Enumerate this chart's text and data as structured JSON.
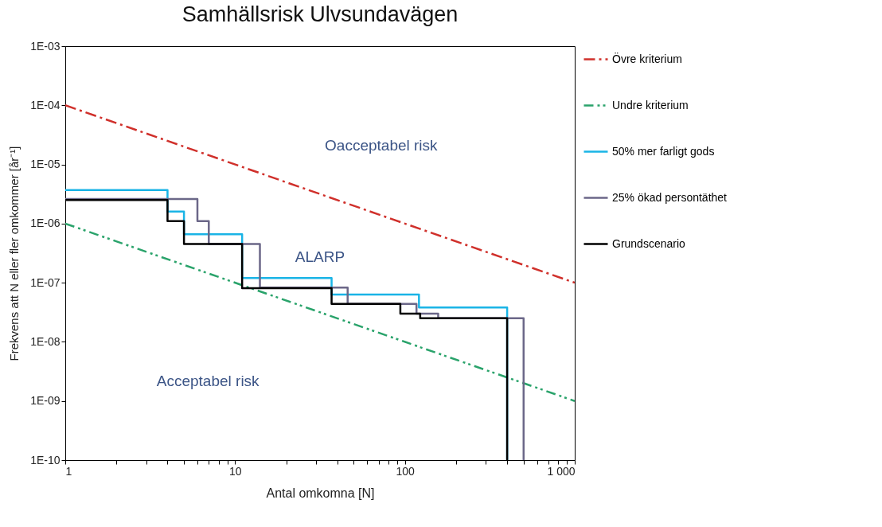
{
  "chart_data": {
    "type": "line",
    "title": "Samhällsrisk  Ulvsundavägen",
    "xlabel": "Antal omkomna [N]",
    "ylabel": "Frekvens att N eller fler omkommer [år⁻¹]",
    "log": "xy",
    "grid": false,
    "legend": "right",
    "marker": "none",
    "xlim": [
      1,
      1000
    ],
    "ylim": [
      1e-10,
      0.001
    ],
    "xticks": [
      {
        "value": 1,
        "label": "1"
      },
      {
        "value": 2,
        "label": null
      },
      {
        "value": 3,
        "label": null
      },
      {
        "value": 4,
        "label": null
      },
      {
        "value": 5,
        "label": null
      },
      {
        "value": 6,
        "label": null
      },
      {
        "value": 7,
        "label": null
      },
      {
        "value": 8,
        "label": null
      },
      {
        "value": 9,
        "label": null
      },
      {
        "value": 10,
        "label": "10"
      },
      {
        "value": 20,
        "label": null
      },
      {
        "value": 30,
        "label": null
      },
      {
        "value": 40,
        "label": null
      },
      {
        "value": 50,
        "label": null
      },
      {
        "value": 60,
        "label": null
      },
      {
        "value": 70,
        "label": null
      },
      {
        "value": 80,
        "label": null
      },
      {
        "value": 90,
        "label": null
      },
      {
        "value": 100,
        "label": "100"
      },
      {
        "value": 200,
        "label": null
      },
      {
        "value": 300,
        "label": null
      },
      {
        "value": 400,
        "label": null
      },
      {
        "value": 500,
        "label": null
      },
      {
        "value": 600,
        "label": null
      },
      {
        "value": 700,
        "label": null
      },
      {
        "value": 800,
        "label": null
      },
      {
        "value": 900,
        "label": null
      },
      {
        "value": 1000,
        "label": "1 000"
      }
    ],
    "yticks": [
      {
        "value": 1e-10,
        "label": "1E-10"
      },
      {
        "value": 1e-09,
        "label": "1E-09"
      },
      {
        "value": 1e-08,
        "label": "1E-08"
      },
      {
        "value": 1e-07,
        "label": "1E-07"
      },
      {
        "value": 1e-06,
        "label": "1E-06"
      },
      {
        "value": 1e-05,
        "label": "1E-05"
      },
      {
        "value": 0.0001,
        "label": "1E-04"
      },
      {
        "value": 0.001,
        "label": "1E-03"
      }
    ],
    "series": [
      {
        "name": "Övre kriterium",
        "color": "#d0302b",
        "type": "line",
        "line_style": "dashed",
        "x": [
          1,
          1000
        ],
        "values": [
          0.0001,
          1e-07
        ]
      },
      {
        "name": "Undre kriterium",
        "color": "#2aa36b",
        "type": "line",
        "line_style": "dotted",
        "x": [
          1,
          1000
        ],
        "values": [
          1e-06,
          1e-09
        ]
      },
      {
        "name": "50%  mer farligt gods",
        "color": "#1ab4e6",
        "type": "step",
        "line_style": "solid",
        "x": [
          1,
          4,
          5,
          11,
          37,
          121,
          400
        ],
        "values": [
          3.7e-06,
          1.6e-06,
          6.6e-07,
          1.2e-07,
          6.3e-08,
          3.8e-08,
          1e-10
        ]
      },
      {
        "name": "25% ökad persontäthet",
        "color": "#6b6788",
        "type": "step",
        "line_style": "solid",
        "x": [
          1,
          6,
          7,
          14,
          46,
          117,
          157,
          500
        ],
        "values": [
          2.6e-06,
          1.1e-06,
          4.5e-07,
          8.3e-08,
          4.4e-08,
          3e-08,
          2.5e-08,
          1e-10
        ]
      },
      {
        "name": "Grundscenario",
        "color": "#000000",
        "type": "step",
        "line_style": "solid",
        "x": [
          1,
          4,
          5,
          11,
          37,
          94,
          123,
          400
        ],
        "values": [
          2.5e-06,
          1.1e-06,
          4.5e-07,
          8.1e-08,
          4.4e-08,
          3e-08,
          2.5e-08,
          1e-10
        ]
      }
    ],
    "annotations": [
      "Oacceptabel risk",
      "ALARP",
      "Acceptabel risk"
    ]
  }
}
